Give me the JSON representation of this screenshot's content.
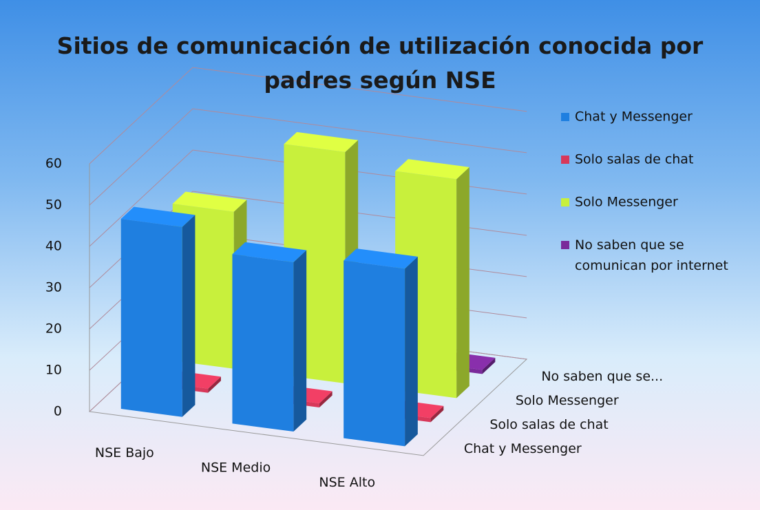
{
  "chart_data": {
    "type": "bar3d",
    "title": "Sitios de comunicación de utilización conocida por padres según NSE",
    "categories": [
      "NSE Bajo",
      "NSE Medio",
      "NSE Alto"
    ],
    "depth_categories": [
      "Chat y Messenger",
      "Solo salas de chat",
      "Solo Messenger",
      "No saben que se..."
    ],
    "series": [
      {
        "name": "Chat y Messenger",
        "color": "#1f7fe0",
        "values": [
          46,
          41,
          43
        ]
      },
      {
        "name": "Solo salas de chat",
        "color": "#d8385a",
        "values": [
          1,
          1,
          1
        ]
      },
      {
        "name": "Solo Messenger",
        "color": "#c8f03c",
        "values": [
          38,
          56,
          53
        ]
      },
      {
        "name": "No saben que se comunican por internet",
        "color": "#7a2a9a",
        "values": [
          8,
          3,
          1
        ]
      }
    ],
    "ylim": [
      0,
      60
    ],
    "yticks": [
      0,
      10,
      20,
      30,
      40,
      50,
      60
    ],
    "grid": true
  }
}
